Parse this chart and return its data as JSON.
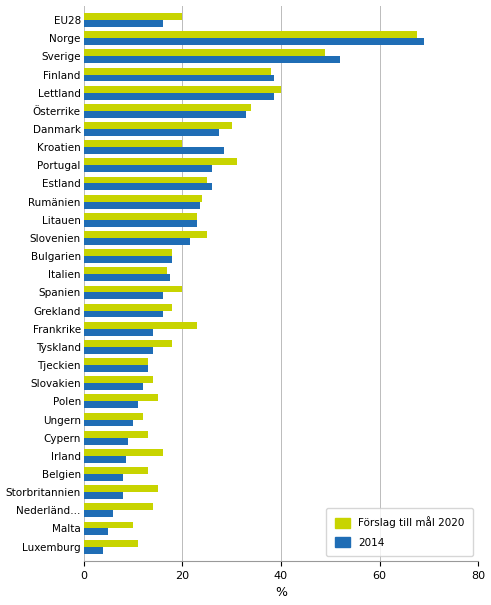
{
  "countries": [
    "EU28",
    "Norge",
    "Sverige",
    "Finland",
    "Lettland",
    "Österrike",
    "Danmark",
    "Kroatien",
    "Portugal",
    "Estland",
    "Rumänien",
    "Litauen",
    "Slovenien",
    "Bulgarien",
    "Italien",
    "Spanien",
    "Grekland",
    "Frankrike",
    "Tyskland",
    "Tjeckien",
    "Slovakien",
    "Polen",
    "Ungern",
    "Cypern",
    "Irland",
    "Belgien",
    "Storbritannien",
    "Nederländ…",
    "Malta",
    "Luxemburg"
  ],
  "mal2020": [
    20,
    67.5,
    49,
    38,
    40,
    34,
    30,
    20,
    31,
    25,
    24,
    23,
    25,
    18,
    17,
    20,
    18,
    23,
    18,
    13,
    14,
    15,
    12,
    13,
    16,
    13,
    15,
    14,
    10,
    11
  ],
  "val2014": [
    16,
    69,
    52,
    38.5,
    38.5,
    33,
    27.5,
    28.5,
    26,
    26,
    23.5,
    23,
    21.5,
    18,
    17.5,
    16,
    16,
    14,
    14,
    13,
    12,
    11,
    10,
    9,
    8.5,
    8,
    8,
    6,
    5,
    4
  ],
  "color_mal": "#c8d400",
  "color_val": "#1f6db5",
  "xlabel": "%",
  "xlim": [
    0,
    80
  ],
  "xticks": [
    0,
    20,
    40,
    60,
    80
  ],
  "legend_mal": "Förslag till mål 2020",
  "legend_val": "2014",
  "background_color": "#ffffff",
  "grid_color": "#bbbbbb"
}
